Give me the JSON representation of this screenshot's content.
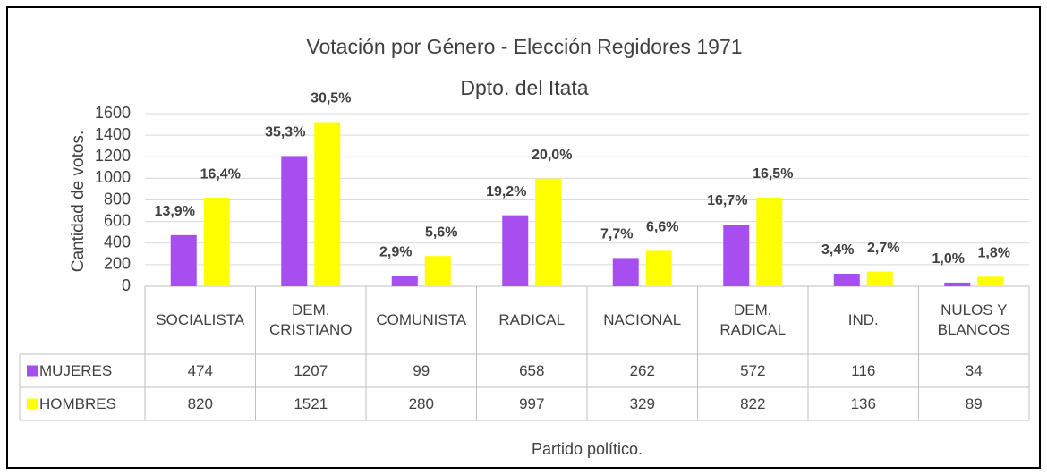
{
  "chart_data": {
    "type": "bar",
    "title": "Votación por Género - Elección Regidores 1971",
    "subtitle": "Dpto. del Itata",
    "x_label": "Partido político.",
    "y_label": "Cantidad de votos.",
    "categories": [
      "SOCIALISTA",
      "DEM.\nCRISTIANO",
      "COMUNISTA",
      "RADICAL",
      "NACIONAL",
      "DEM.\nRADICAL",
      "IND.",
      "NULOS Y\nBLANCOS"
    ],
    "series": [
      {
        "name": "MUJERES",
        "color": "#a64ef0",
        "values": [
          474,
          1207,
          99,
          658,
          262,
          572,
          116,
          34
        ],
        "annotations": [
          "13,9%",
          "35,3%",
          "2,9%",
          "19,2%",
          "7,7%",
          "16,7%",
          "3,4%",
          "1,0%"
        ]
      },
      {
        "name": "HOMBRES",
        "color": "#ffff00",
        "values": [
          820,
          1521,
          280,
          997,
          329,
          822,
          136,
          89
        ],
        "annotations": [
          "16,4%",
          "30,5%",
          "5,6%",
          "20,0%",
          "6,6%",
          "16,5%",
          "2,7%",
          "1,8%"
        ]
      }
    ],
    "ylim": [
      0,
      1600
    ],
    "yticks": [
      0,
      200,
      400,
      600,
      800,
      1000,
      1200,
      1400,
      1600
    ],
    "grid": true,
    "data_table": true
  }
}
